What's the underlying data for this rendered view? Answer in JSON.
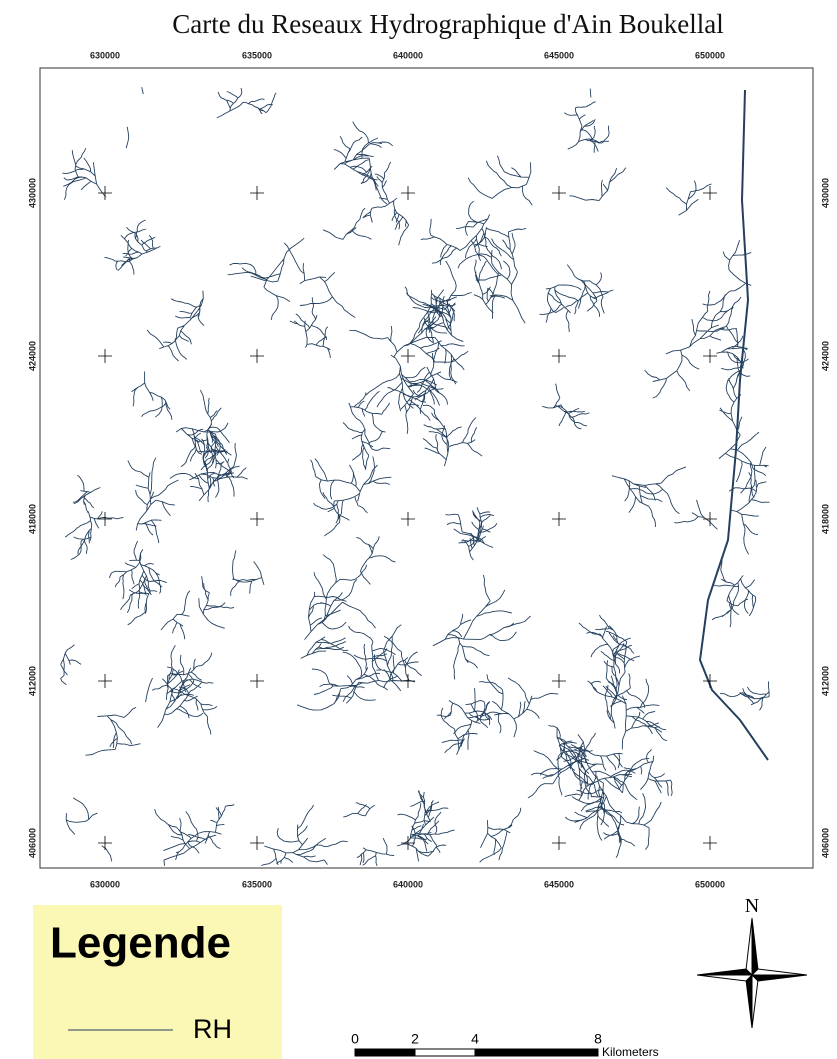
{
  "title": "Carte du Reseaux Hydrographique d'Ain Boukellal",
  "map": {
    "xticks": [
      "630000",
      "635000",
      "640000",
      "645000",
      "650000"
    ],
    "yticks": [
      "430000",
      "424000",
      "418000",
      "412000",
      "406000"
    ]
  },
  "legend": {
    "title": "Legende",
    "items": [
      {
        "label": "RH"
      }
    ]
  },
  "north_arrow": {
    "label": "N"
  },
  "scale_bar": {
    "labels": [
      "0",
      "2",
      "4",
      "8"
    ],
    "unit": "Kilometers"
  }
}
